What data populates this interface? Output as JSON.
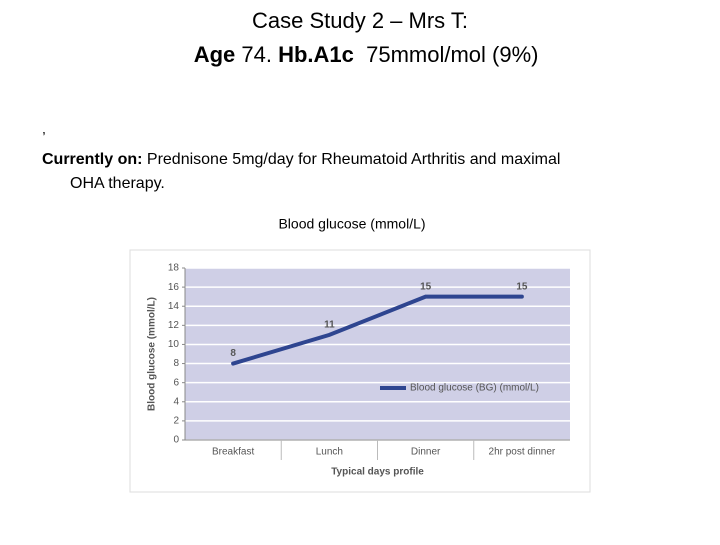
{
  "slide": {
    "title": "Case Study 2 – Mrs T:",
    "subtitle_parts": [
      "Age",
      " 74. ",
      "Hb.A1c",
      "  75mmol/mol (9%)"
    ],
    "stray_mark": ",",
    "body_label": "Currently on:",
    "body_lines": [
      " Prednisone 5mg/day for Rheumatoid Arthritis and maximal",
      "OHA therapy."
    ]
  },
  "chart_data": {
    "type": "line",
    "title": "Blood glucose (mmol/L)",
    "x_label": "Typical days profile",
    "y_label": "Blood glucose (mmol/L)",
    "categories": [
      "Breakfast",
      "Lunch",
      "Dinner",
      "2hr post dinner"
    ],
    "series": [
      {
        "name": "Blood glucose (BG) (mmol/L)",
        "color": "#2e4590",
        "values": [
          8,
          11,
          15,
          15
        ]
      }
    ],
    "ylim": [
      0,
      18
    ],
    "yticks": [
      0,
      2,
      4,
      6,
      8,
      10,
      12,
      14,
      16,
      18
    ],
    "grid": true,
    "legend": "lower right",
    "plot_background": "#cfcfe6"
  }
}
